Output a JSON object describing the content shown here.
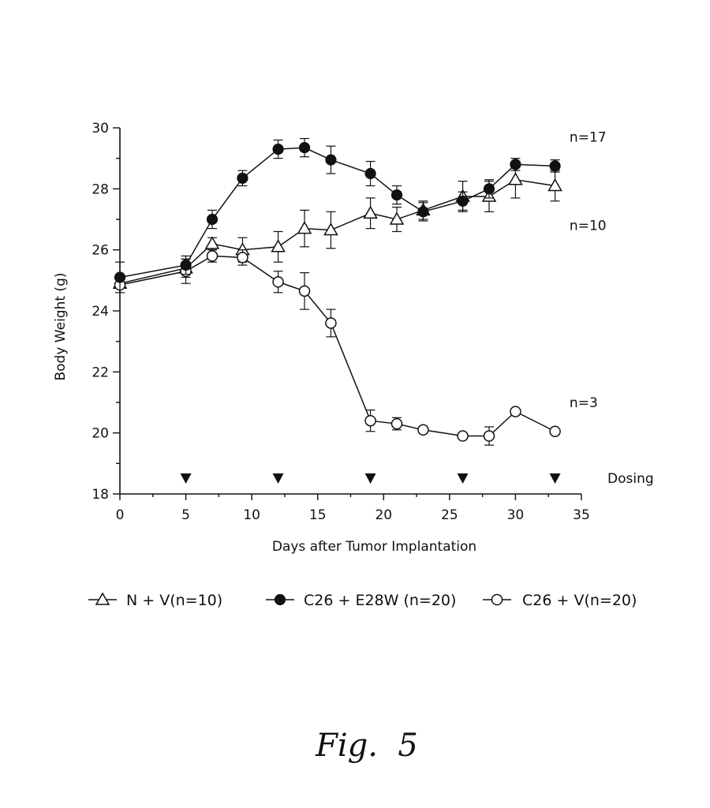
{
  "chart_data": {
    "type": "line",
    "xlabel": "Days after Tumor Implantation",
    "ylabel": "Body Weight (g)",
    "xlim": [
      0,
      35
    ],
    "ylim": [
      18,
      30
    ],
    "xticks": [
      0,
      5,
      10,
      15,
      20,
      25,
      30,
      35
    ],
    "yticks": [
      18,
      20,
      22,
      24,
      26,
      28,
      30
    ],
    "grid": false,
    "legend_position": "bottom",
    "series": [
      {
        "name": "N + V(n=10)",
        "marker": "triangle-open",
        "x": [
          0,
          5,
          7,
          9.3,
          12,
          14,
          16,
          19,
          21,
          23,
          26,
          28,
          30,
          33
        ],
        "y": [
          24.9,
          25.4,
          26.2,
          26.0,
          26.1,
          26.7,
          26.65,
          27.2,
          27.0,
          27.3,
          27.75,
          27.75,
          28.3,
          28.1
        ],
        "err": [
          0,
          0.3,
          0.2,
          0.4,
          0.5,
          0.6,
          0.6,
          0.5,
          0.4,
          0.3,
          0.5,
          0.5,
          0.6,
          0.5
        ]
      },
      {
        "name": "C26 + E28W (n=20)",
        "marker": "circle-filled",
        "x": [
          0,
          5,
          7,
          9.3,
          12,
          14,
          16,
          19,
          21,
          23,
          26,
          28,
          30,
          33
        ],
        "y": [
          25.1,
          25.5,
          27.0,
          28.35,
          29.3,
          29.35,
          28.95,
          28.5,
          27.8,
          27.25,
          27.6,
          28.0,
          28.8,
          28.75
        ],
        "err": [
          0.5,
          0.3,
          0.3,
          0.25,
          0.3,
          0.3,
          0.45,
          0.4,
          0.3,
          0.3,
          0.3,
          0.3,
          0.2,
          0.2
        ]
      },
      {
        "name": "C26 + V(n=20)",
        "marker": "circle-open",
        "x": [
          0,
          5,
          7,
          9.3,
          12,
          14,
          16,
          19,
          21,
          23,
          26,
          28,
          30,
          33
        ],
        "y": [
          24.85,
          25.3,
          25.8,
          25.75,
          24.95,
          24.65,
          23.6,
          20.4,
          20.3,
          20.1,
          19.9,
          19.9,
          20.7,
          20.05
        ],
        "err": [
          0,
          0.4,
          0.2,
          0.25,
          0.35,
          0.6,
          0.45,
          0.35,
          0.2,
          0,
          0,
          0.3,
          0,
          0
        ]
      }
    ],
    "dosing": {
      "label": "Dosing",
      "days": [
        5,
        12,
        19,
        26,
        33
      ]
    },
    "annotations": [
      {
        "text": "n=17",
        "x": 33.5,
        "y": 29.7
      },
      {
        "text": "n=10",
        "x": 33.5,
        "y": 26.8
      },
      {
        "text": "n=3",
        "x": 33.5,
        "y": 21.0
      }
    ]
  },
  "caption": "Fig.  5"
}
